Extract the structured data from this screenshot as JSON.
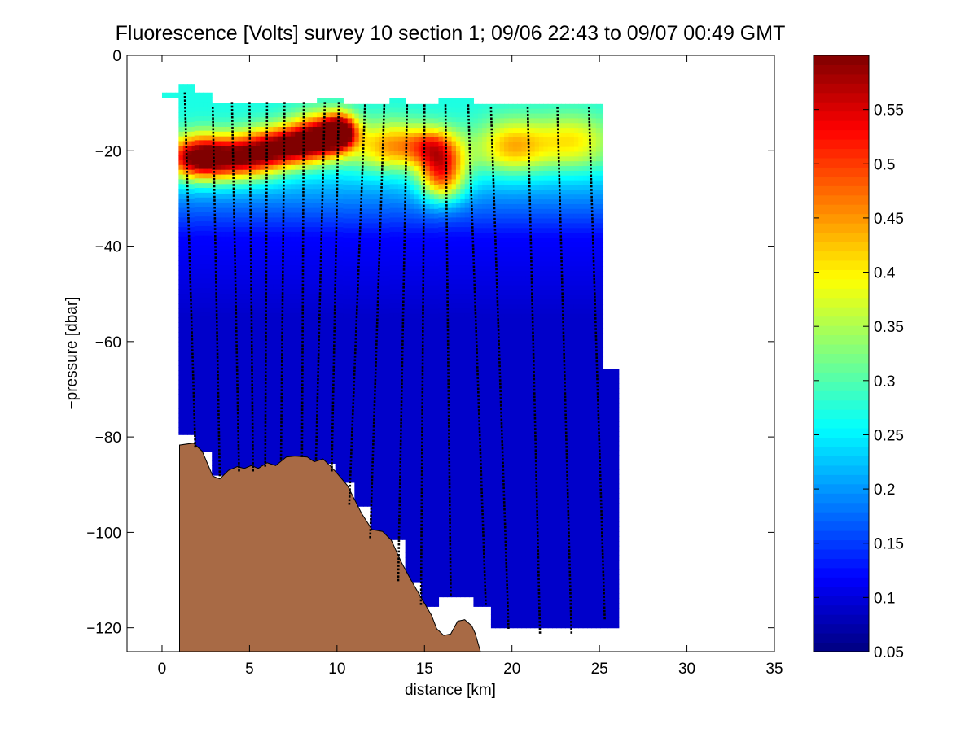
{
  "chart_data": {
    "type": "heatmap",
    "title": "Fluorescence [Volts] survey 10 section 1; 09/06 22:43 to 09/07 00:49 GMT",
    "xlabel": "distance [km]",
    "ylabel": "−pressure [dbar]",
    "xlim": [
      -2,
      35
    ],
    "ylim": [
      -125,
      0
    ],
    "x_ticks": [
      0,
      5,
      10,
      15,
      20,
      25,
      30,
      35
    ],
    "y_ticks": [
      0,
      -20,
      -40,
      -60,
      -80,
      -100,
      -120
    ],
    "x_tick_labels": [
      "0",
      "5",
      "10",
      "15",
      "20",
      "25",
      "30",
      "35"
    ],
    "y_tick_labels": [
      "0",
      "−20",
      "−40",
      "−60",
      "−80",
      "−100",
      "−120"
    ],
    "grid": false,
    "colormap": "jet",
    "colorbar": {
      "range": [
        0.05,
        0.6
      ],
      "ticks": [
        0.05,
        0.1,
        0.15,
        0.2,
        0.25,
        0.3,
        0.35,
        0.4,
        0.45,
        0.5,
        0.55
      ],
      "tick_labels": [
        "0.05",
        "0.1",
        "0.15",
        "0.2",
        "0.25",
        "0.3",
        "0.35",
        "0.4",
        "0.45",
        "0.5",
        "0.55"
      ]
    },
    "section_columns": [
      {
        "x0": 0.0,
        "x1": 0.95,
        "top": -7.8,
        "bottom": -8.8
      },
      {
        "x0": 0.95,
        "x1": 1.85,
        "top": -6.0,
        "bottom": -79.5
      },
      {
        "x0": 1.85,
        "x1": 2.85,
        "top": -7.8,
        "bottom": -83.0
      },
      {
        "x0": 2.85,
        "x1": 8.85,
        "top": -10.0,
        "bottom": -88.0
      },
      {
        "x0": 8.85,
        "x1": 9.9,
        "top": -9.0,
        "bottom": -85.5
      },
      {
        "x0": 9.9,
        "x1": 10.35,
        "top": -9.0,
        "bottom": -89.5
      },
      {
        "x0": 10.35,
        "x1": 11.0,
        "top": -10.2,
        "bottom": -89.5
      },
      {
        "x0": 11.0,
        "x1": 11.9,
        "top": -10.2,
        "bottom": -94.5
      },
      {
        "x0": 11.9,
        "x1": 13.0,
        "top": -10.2,
        "bottom": -101.5
      },
      {
        "x0": 13.0,
        "x1": 13.9,
        "top": -9.0,
        "bottom": -101.5
      },
      {
        "x0": 13.9,
        "x1": 14.8,
        "top": -10.2,
        "bottom": -110.5
      },
      {
        "x0": 14.8,
        "x1": 15.8,
        "top": -10.2,
        "bottom": -115.5
      },
      {
        "x0": 15.8,
        "x1": 17.8,
        "top": -9.0,
        "bottom": -113.5
      },
      {
        "x0": 17.8,
        "x1": 18.8,
        "top": -10.2,
        "bottom": -115.5
      },
      {
        "x0": 18.8,
        "x1": 25.2,
        "top": -10.2,
        "bottom": -120.0
      },
      {
        "x0": 25.2,
        "x1": 26.1,
        "top": -65.8,
        "bottom": -120.0
      }
    ],
    "fluorescence_features": [
      {
        "x": 2.0,
        "y": -21.5,
        "value": 0.58,
        "sx": 1.7,
        "sy": 4.5
      },
      {
        "x": 4.5,
        "y": -21.5,
        "value": 0.56,
        "sx": 2.2,
        "sy": 4.5
      },
      {
        "x": 7.0,
        "y": -19.0,
        "value": 0.55,
        "sx": 2.0,
        "sy": 4.0
      },
      {
        "x": 9.0,
        "y": -17.0,
        "value": 0.56,
        "sx": 1.6,
        "sy": 4.5
      },
      {
        "x": 10.2,
        "y": -16.0,
        "value": 0.6,
        "sx": 0.9,
        "sy": 3.5
      },
      {
        "x": 13.0,
        "y": -19.0,
        "value": 0.44,
        "sx": 2.0,
        "sy": 5.0
      },
      {
        "x": 16.0,
        "y": -25.0,
        "value": 0.5,
        "sx": 1.3,
        "sy": 5.5
      },
      {
        "x": 15.5,
        "y": -19.0,
        "value": 0.45,
        "sx": 1.5,
        "sy": 4.0
      },
      {
        "x": 20.0,
        "y": -19.0,
        "value": 0.43,
        "sx": 2.0,
        "sy": 5.5
      },
      {
        "x": 23.5,
        "y": -18.0,
        "value": 0.4,
        "sx": 2.2,
        "sy": 5.5
      }
    ],
    "profile_casts": [
      {
        "x0": 1.3,
        "y0": -8.0,
        "x1": 1.9,
        "y1": -82.0
      },
      {
        "x0": 2.9,
        "y0": -11.0,
        "x1": 3.3,
        "y1": -88.0
      },
      {
        "x0": 4.0,
        "y0": -10.0,
        "x1": 4.4,
        "y1": -87.0
      },
      {
        "x0": 5.0,
        "y0": -10.0,
        "x1": 5.2,
        "y1": -87.0
      },
      {
        "x0": 6.0,
        "y0": -10.0,
        "x1": 5.9,
        "y1": -86.0
      },
      {
        "x0": 7.0,
        "y0": -10.0,
        "x1": 6.8,
        "y1": -84.5
      },
      {
        "x0": 8.1,
        "y0": -10.0,
        "x1": 8.0,
        "y1": -84.0
      },
      {
        "x0": 9.3,
        "y0": -10.0,
        "x1": 8.8,
        "y1": -84.5
      },
      {
        "x0": 10.1,
        "y0": -10.0,
        "x1": 9.7,
        "y1": -87.0
      },
      {
        "x0": 11.6,
        "y0": -10.5,
        "x1": 10.7,
        "y1": -94.0
      },
      {
        "x0": 12.7,
        "y0": -10.5,
        "x1": 11.9,
        "y1": -101.0
      },
      {
        "x0": 14.0,
        "y0": -10.5,
        "x1": 13.5,
        "y1": -110.0
      },
      {
        "x0": 15.0,
        "y0": -10.5,
        "x1": 14.8,
        "y1": -115.0
      },
      {
        "x0": 16.2,
        "y0": -10.5,
        "x1": 16.5,
        "y1": -113.0
      },
      {
        "x0": 17.5,
        "y0": -10.5,
        "x1": 18.5,
        "y1": -115.0
      },
      {
        "x0": 18.8,
        "y0": -11.0,
        "x1": 19.8,
        "y1": -120.0
      },
      {
        "x0": 20.9,
        "y0": -11.0,
        "x1": 21.6,
        "y1": -121.0
      },
      {
        "x0": 22.6,
        "y0": -11.0,
        "x1": 23.4,
        "y1": -121.0
      },
      {
        "x0": 24.4,
        "y0": -11.0,
        "x1": 25.3,
        "y1": -118.0
      }
    ],
    "bottom_profile": {
      "fill_color": "#a86a45",
      "points": [
        [
          1.0,
          -125
        ],
        [
          1.0,
          -81.7
        ],
        [
          1.8,
          -81.3
        ],
        [
          2.3,
          -83.0
        ],
        [
          2.9,
          -88.2
        ],
        [
          3.3,
          -88.8
        ],
        [
          3.8,
          -87.0
        ],
        [
          4.3,
          -86.2
        ],
        [
          4.7,
          -86.6
        ],
        [
          5.1,
          -86.0
        ],
        [
          5.5,
          -86.6
        ],
        [
          6.0,
          -85.4
        ],
        [
          6.5,
          -86.0
        ],
        [
          7.1,
          -84.2
        ],
        [
          7.6,
          -84.0
        ],
        [
          8.3,
          -84.2
        ],
        [
          8.7,
          -85.2
        ],
        [
          9.2,
          -84.6
        ],
        [
          9.6,
          -86.0
        ],
        [
          10.0,
          -87.6
        ],
        [
          10.6,
          -90.2
        ],
        [
          11.4,
          -96.0
        ],
        [
          12.0,
          -99.4
        ],
        [
          12.6,
          -99.8
        ],
        [
          13.1,
          -101.6
        ],
        [
          13.7,
          -106.4
        ],
        [
          14.2,
          -109.8
        ],
        [
          14.8,
          -113.6
        ],
        [
          15.4,
          -117.4
        ],
        [
          15.7,
          -120.2
        ],
        [
          16.1,
          -121.6
        ],
        [
          16.5,
          -121.3
        ],
        [
          16.9,
          -118.6
        ],
        [
          17.3,
          -118.3
        ],
        [
          17.7,
          -119.6
        ],
        [
          17.9,
          -121.2
        ],
        [
          18.2,
          -125
        ]
      ]
    }
  }
}
